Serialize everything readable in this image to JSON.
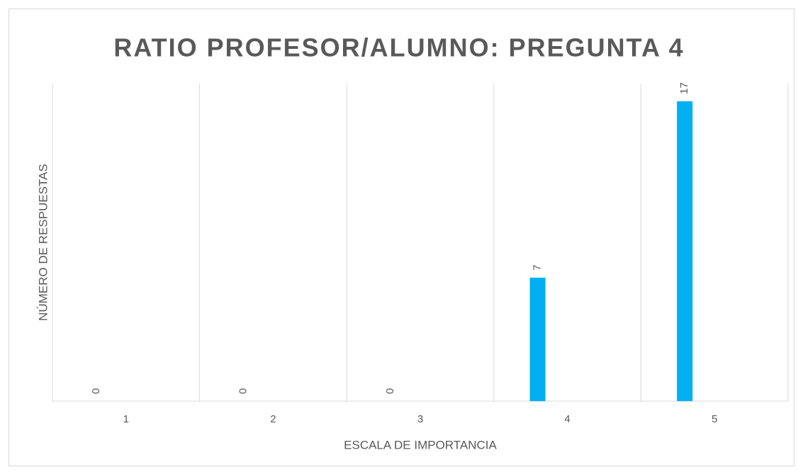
{
  "chart_data": {
    "type": "bar",
    "title": "RATIO PROFESOR/ALUMNO: PREGUNTA 4",
    "x_label": "ESCALA DE IMPORTANCIA",
    "y_label": "NÚMERO DE RESPUESTAS",
    "categories": [
      "1",
      "2",
      "3",
      "4",
      "5"
    ],
    "values": [
      0,
      0,
      0,
      7,
      17
    ],
    "color": "#00b0f0",
    "ylim": [
      0,
      18
    ],
    "grid": true
  }
}
